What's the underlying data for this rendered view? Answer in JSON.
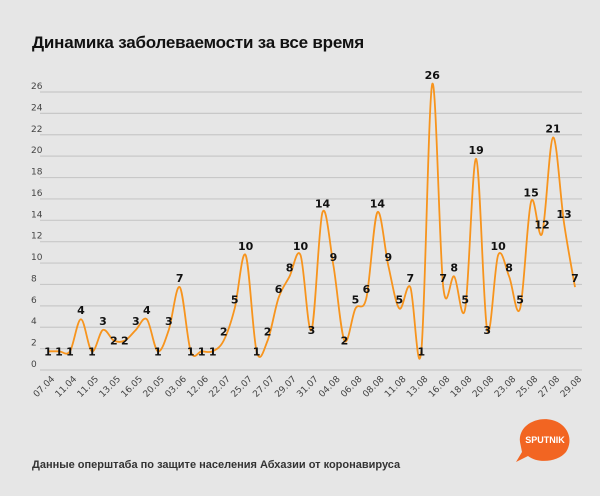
{
  "chart_data": {
    "type": "line",
    "title": "Динамика заболеваемости за все время",
    "xlabel": "",
    "ylabel": "",
    "ylim": [
      0,
      26
    ],
    "yticks": [
      0,
      2,
      4,
      6,
      8,
      10,
      12,
      14,
      16,
      18,
      20,
      22,
      24,
      26
    ],
    "grid": true,
    "smooth": true,
    "xtick_labels": [
      "07.04",
      "11.04",
      "11.05",
      "13.05",
      "16.05",
      "20.05",
      "03.06",
      "12.06",
      "22.07",
      "25.07",
      "27.07",
      "29.07",
      "31.07",
      "04.08",
      "06.08",
      "08.08",
      "11.08",
      "13.08",
      "16.08",
      "18.08",
      "20.08",
      "23.08",
      "25.08",
      "27.08",
      "29.08"
    ],
    "values": [
      1,
      1,
      1,
      4,
      1,
      3,
      2,
      2,
      3,
      4,
      1,
      3,
      7,
      1,
      1,
      1,
      2,
      5,
      10,
      1,
      2,
      6,
      8,
      10,
      3,
      14,
      9,
      2,
      5,
      6,
      14,
      9,
      5,
      7,
      1,
      26,
      7,
      8,
      5,
      19,
      3,
      10,
      8,
      5,
      15,
      12,
      21,
      13,
      7
    ],
    "line_color": "#f7941d"
  },
  "footer": "Данные оперштаба по защите населения Абхазии от коронавируса",
  "logo": {
    "text": "SPUTNIK",
    "color": "#f26522"
  }
}
